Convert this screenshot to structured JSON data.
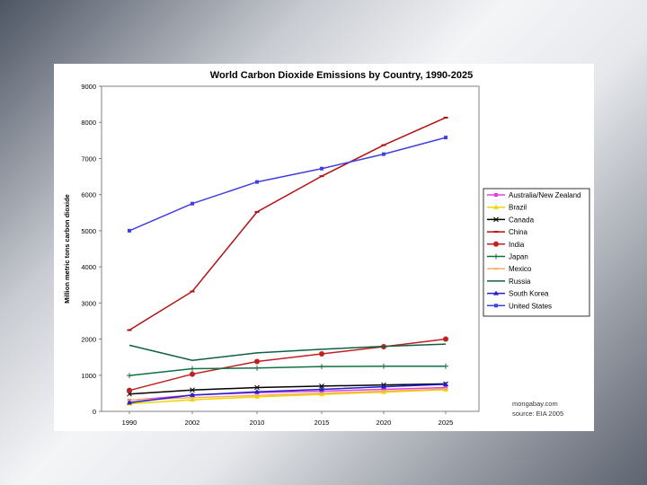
{
  "chart_data": {
    "type": "line",
    "title": "World Carbon Dioxide Emissions by Country, 1990-2025",
    "xlabel": "",
    "ylabel": "Million metric tons carbon dioxide",
    "categories": [
      "1990",
      "2002",
      "2010",
      "2015",
      "2020",
      "2025"
    ],
    "ylim": [
      0,
      9000
    ],
    "yticks": [
      0,
      1000,
      2000,
      3000,
      4000,
      5000,
      6000,
      7000,
      8000,
      9000
    ],
    "grid": false,
    "legend_position": "right",
    "series": [
      {
        "name": "Australia/New Zealand",
        "color": "#e040e0",
        "marker": "square",
        "values": [
          300,
          450,
          520,
          560,
          610,
          660
        ]
      },
      {
        "name": "Brazil",
        "color": "#f2d400",
        "marker": "triangle",
        "values": [
          210,
          320,
          400,
          470,
          530,
          600
        ]
      },
      {
        "name": "Canada",
        "color": "#000000",
        "marker": "cross",
        "values": [
          480,
          590,
          660,
          700,
          730,
          760
        ]
      },
      {
        "name": "China",
        "color": "#b01010",
        "marker": "dash",
        "values": [
          2250,
          3320,
          5520,
          6510,
          7370,
          8130
        ]
      },
      {
        "name": "India",
        "color": "#c02020",
        "marker": "circle",
        "values": [
          580,
          1030,
          1380,
          1590,
          1790,
          2000
        ]
      },
      {
        "name": "Japan",
        "color": "#107040",
        "marker": "plus",
        "values": [
          990,
          1180,
          1200,
          1240,
          1250,
          1250
        ]
      },
      {
        "name": "Mexico",
        "color": "#f0b060",
        "marker": "dash",
        "values": [
          310,
          380,
          440,
          500,
          560,
          620
        ]
      },
      {
        "name": "Russia",
        "color": "#106040",
        "marker": "none",
        "values": [
          1830,
          1410,
          1620,
          1720,
          1800,
          1860
        ]
      },
      {
        "name": "South Korea",
        "color": "#2020d0",
        "marker": "triangle",
        "values": [
          240,
          450,
          540,
          610,
          680,
          750
        ]
      },
      {
        "name": "United States",
        "color": "#4040e0",
        "marker": "square",
        "values": [
          5000,
          5750,
          6350,
          6720,
          7120,
          7580
        ]
      }
    ],
    "annotations": [
      "mongabay.com",
      "source: EIA 2005"
    ]
  }
}
